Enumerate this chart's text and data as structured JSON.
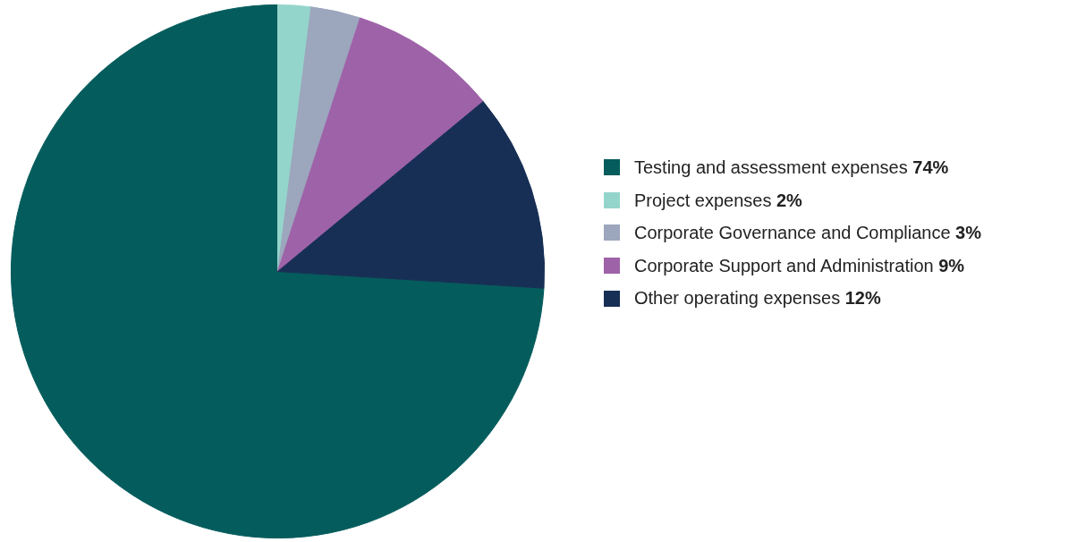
{
  "chart_data": {
    "type": "pie",
    "categories": [
      "Testing and assessment expenses",
      "Project expenses",
      "Corporate Governance and Compliance",
      "Corporate Support and Administration",
      "Other operating expenses"
    ],
    "values": [
      74,
      2,
      3,
      9,
      12
    ],
    "value_labels": [
      "74%",
      "2%",
      "3%",
      "9%",
      "12%"
    ],
    "colors": [
      "#055c5c",
      "#94d5cb",
      "#9ca6bd",
      "#9e62a8",
      "#172f55"
    ],
    "legend": "right"
  }
}
